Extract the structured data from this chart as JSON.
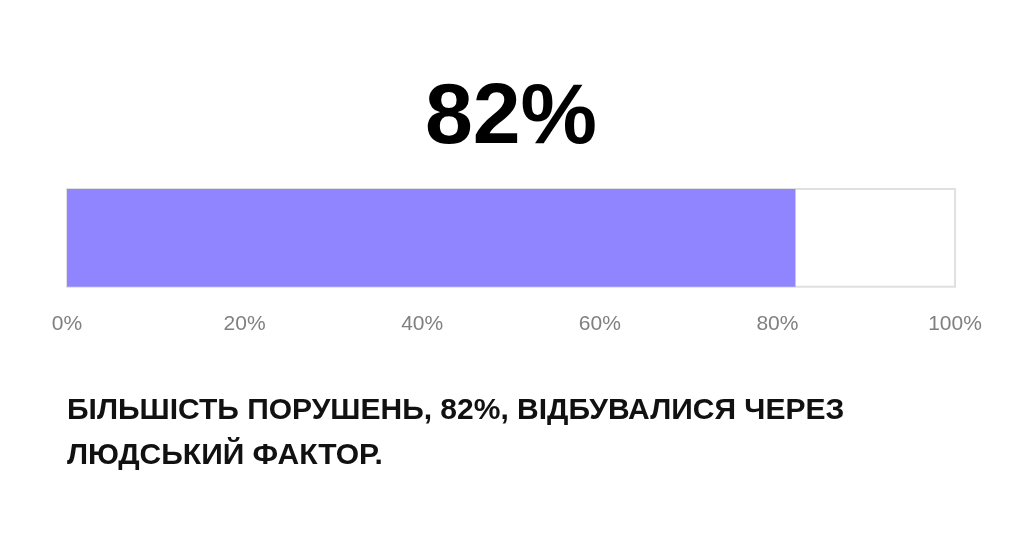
{
  "chart_data": {
    "type": "bar",
    "orientation": "horizontal",
    "categories": [
      null
    ],
    "values": [
      82
    ],
    "color": "#9184ff",
    "value_labels": [
      "82%"
    ],
    "xlim": [
      0,
      100
    ],
    "xticks": [
      {
        "value": 0,
        "label": "0%"
      },
      {
        "value": 20,
        "label": "20%"
      },
      {
        "value": 40,
        "label": "40%"
      },
      {
        "value": 60,
        "label": "60%"
      },
      {
        "value": 80,
        "label": "80%"
      },
      {
        "value": 100,
        "label": "100%"
      }
    ],
    "tick_labels": "x",
    "grid": false,
    "legend": false,
    "annotations": [
      "БІЛЬШІСТЬ ПОРУШЕНЬ, 82%, ВІДБУВАЛИСЯ ЧЕРЕЗ ЛЮДСЬКИЙ ФАКТОР."
    ]
  }
}
